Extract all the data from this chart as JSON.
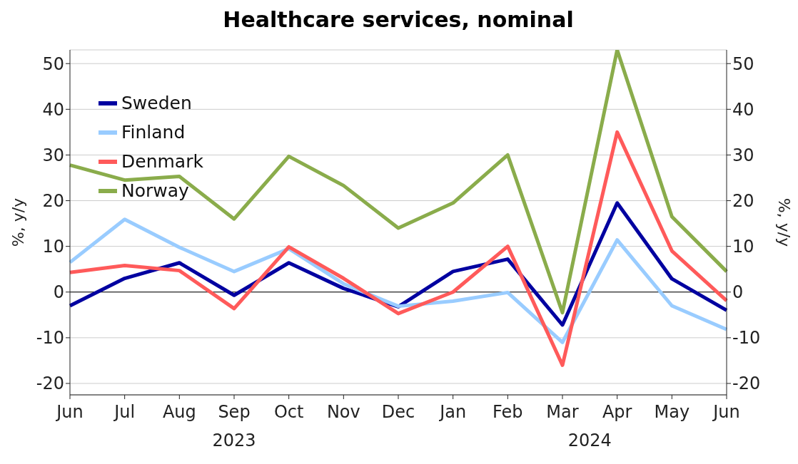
{
  "chart_data": {
    "type": "line",
    "title": "Healthcare services, nominal",
    "ylabel": "%, y/y",
    "y2label": "%, y/y",
    "categories": [
      "Jun",
      "Jul",
      "Aug",
      "Sep",
      "Oct",
      "Nov",
      "Dec",
      "Jan",
      "Feb",
      "Mar",
      "Apr",
      "May",
      "Jun"
    ],
    "series": [
      {
        "name": "Sweden",
        "color": "#0000a0",
        "values": [
          -3,
          3,
          6.4,
          -0.7,
          6.4,
          0.8,
          -3.2,
          4.5,
          7.2,
          -7.2,
          19.5,
          2.9,
          -4
        ]
      },
      {
        "name": "Finland",
        "color": "#99ccff",
        "values": [
          6.5,
          15.9,
          9.8,
          4.5,
          9.5,
          1.8,
          -3.1,
          -2,
          -0.1,
          -11,
          11.4,
          -3,
          -8.2
        ]
      },
      {
        "name": "Denmark",
        "color": "#ff5a5a",
        "values": [
          4.3,
          5.8,
          4.7,
          -3.6,
          9.9,
          3,
          -4.7,
          0,
          10,
          -16,
          35,
          9,
          -1.9
        ]
      },
      {
        "name": "Norway",
        "color": "#8aac4b",
        "values": [
          27.8,
          24.5,
          25.3,
          16,
          29.7,
          23.3,
          14,
          19.5,
          30,
          -4.5,
          53,
          16.5,
          4.5
        ]
      }
    ],
    "ylim": [
      -22.5,
      53
    ],
    "yticks": [
      -20,
      -10,
      0,
      10,
      20,
      30,
      40,
      50
    ],
    "y2lim": [
      -22.5,
      53
    ],
    "y2ticks": [
      -20,
      -10,
      0,
      10,
      20,
      30,
      40,
      50
    ],
    "ref_lines": [
      {
        "axis": "y",
        "value": 0,
        "color": "#000000"
      }
    ],
    "annotations": [
      "2023",
      "2024"
    ],
    "grid": "y",
    "legend": "top left",
    "marker": "none",
    "line_style": "solid"
  }
}
